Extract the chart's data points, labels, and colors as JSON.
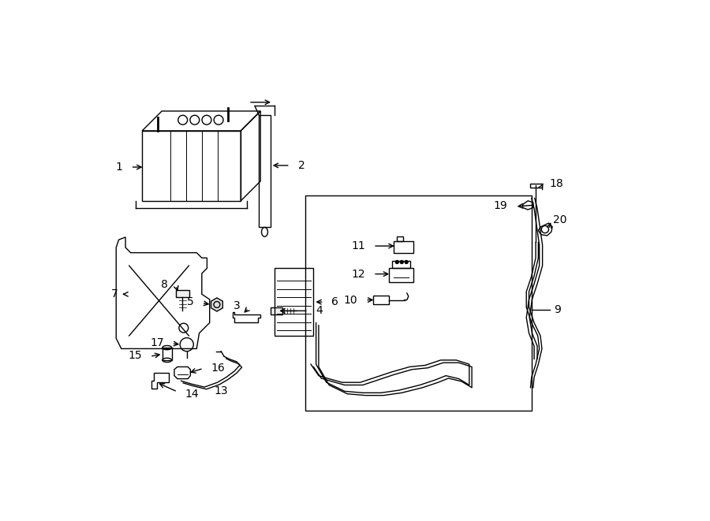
{
  "title": "",
  "bg_color": "#ffffff",
  "line_color": "#000000",
  "label_color": "#000000",
  "fig_width": 9.0,
  "fig_height": 6.61
}
